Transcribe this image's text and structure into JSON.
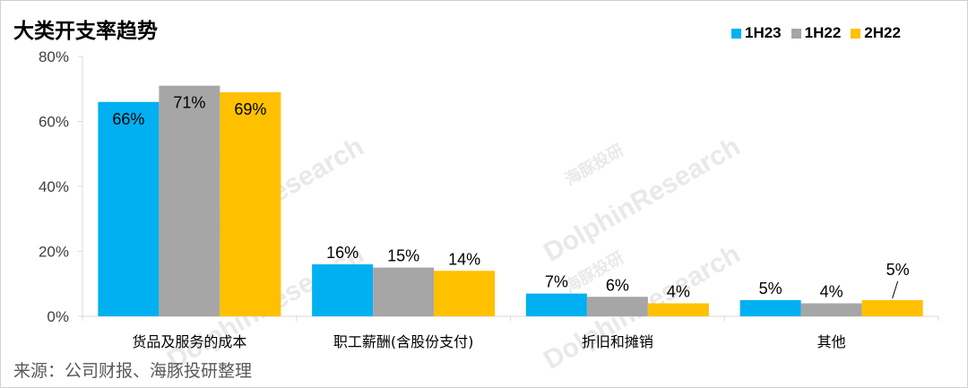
{
  "title": "大类开支率趋势",
  "source": "来源：公司财报、海豚投研整理",
  "watermark": {
    "brand": "DolphinResearch",
    "cn": "海豚投研"
  },
  "colors": {
    "1H23": "#00b0f0",
    "1H22": "#a6a6a6",
    "2H22": "#ffc000"
  },
  "chart_data": {
    "type": "bar",
    "categories": [
      "货品及服务的成本",
      "职工薪酬(含股份支付)",
      "折旧和摊销",
      "其他"
    ],
    "series": [
      {
        "name": "1H23",
        "values": [
          66,
          16,
          7,
          5
        ],
        "labels": [
          "66%",
          "16%",
          "7%",
          "5%"
        ]
      },
      {
        "name": "1H22",
        "values": [
          71,
          15,
          6,
          4
        ],
        "labels": [
          "71%",
          "15%",
          "6%",
          "4%"
        ]
      },
      {
        "name": "2H22",
        "values": [
          69,
          14,
          4,
          5
        ],
        "labels": [
          "69%",
          "14%",
          "4%",
          "5%"
        ]
      }
    ],
    "ylim": [
      0,
      80
    ],
    "yticks": [
      0,
      20,
      40,
      60,
      80
    ],
    "ytick_labels": [
      "0%",
      "20%",
      "40%",
      "60%",
      "80%"
    ],
    "legend_position": "top-right",
    "grid": false
  }
}
